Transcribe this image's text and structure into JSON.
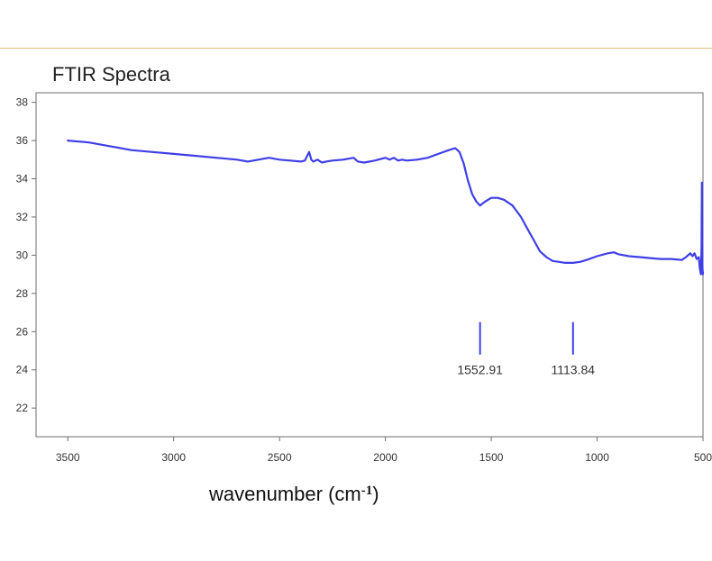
{
  "chart_data": {
    "type": "line",
    "title": "FTIR Spectra",
    "xlabel": {
      "prefix": "wavenumber (cm",
      "superscript": "-1",
      "suffix": ")"
    },
    "ylabel": "",
    "xlim": [
      3650,
      500
    ],
    "ylim": [
      20.5,
      38.5
    ],
    "x_reversed": true,
    "grid": false,
    "x_ticks": [
      3500,
      3000,
      2500,
      2000,
      1500,
      1000,
      500
    ],
    "y_ticks": [
      22,
      24,
      26,
      28,
      30,
      32,
      34,
      36,
      38
    ],
    "series": [
      {
        "color": "#3f3fe8",
        "x": [
          3500,
          3400,
          3300,
          3200,
          3100,
          3000,
          2900,
          2800,
          2700,
          2650,
          2600,
          2550,
          2500,
          2450,
          2400,
          2380,
          2360,
          2350,
          2340,
          2320,
          2300,
          2280,
          2250,
          2200,
          2150,
          2130,
          2100,
          2050,
          2000,
          1980,
          1960,
          1940,
          1920,
          1900,
          1850,
          1800,
          1750,
          1700,
          1670,
          1650,
          1630,
          1610,
          1590,
          1570,
          1553,
          1530,
          1500,
          1470,
          1440,
          1400,
          1360,
          1330,
          1300,
          1270,
          1240,
          1210,
          1180,
          1150,
          1114,
          1080,
          1050,
          1000,
          950,
          920,
          900,
          850,
          800,
          750,
          700,
          650,
          600,
          580,
          560,
          550,
          540,
          530,
          520,
          515,
          510,
          507,
          505,
          503,
          501,
          500
        ],
        "y": [
          36.0,
          35.9,
          35.7,
          35.5,
          35.4,
          35.3,
          35.2,
          35.1,
          35.0,
          34.9,
          35.0,
          35.1,
          35.0,
          34.95,
          34.9,
          34.95,
          35.4,
          35.0,
          34.9,
          35.0,
          34.85,
          34.9,
          34.95,
          35.0,
          35.1,
          34.9,
          34.85,
          34.95,
          35.1,
          35.0,
          35.1,
          34.95,
          35.0,
          34.95,
          35.0,
          35.1,
          35.3,
          35.5,
          35.6,
          35.4,
          34.8,
          33.9,
          33.2,
          32.8,
          32.6,
          32.8,
          33.0,
          33.0,
          32.9,
          32.6,
          32.0,
          31.4,
          30.8,
          30.2,
          29.9,
          29.7,
          29.65,
          29.6,
          29.6,
          29.65,
          29.75,
          29.95,
          30.1,
          30.15,
          30.05,
          29.95,
          29.9,
          29.85,
          29.8,
          29.8,
          29.75,
          29.9,
          30.1,
          29.95,
          30.1,
          29.8,
          29.9,
          29.3,
          29.0,
          30.5,
          33.8,
          29.5,
          29.0,
          29.1
        ]
      }
    ],
    "annotations": [
      {
        "x": 1552.91,
        "label": "1552.91",
        "y_top": 26.5,
        "y_bottom": 24.8
      },
      {
        "x": 1113.84,
        "label": "1113.84",
        "y_top": 26.5,
        "y_bottom": 24.8
      }
    ]
  }
}
